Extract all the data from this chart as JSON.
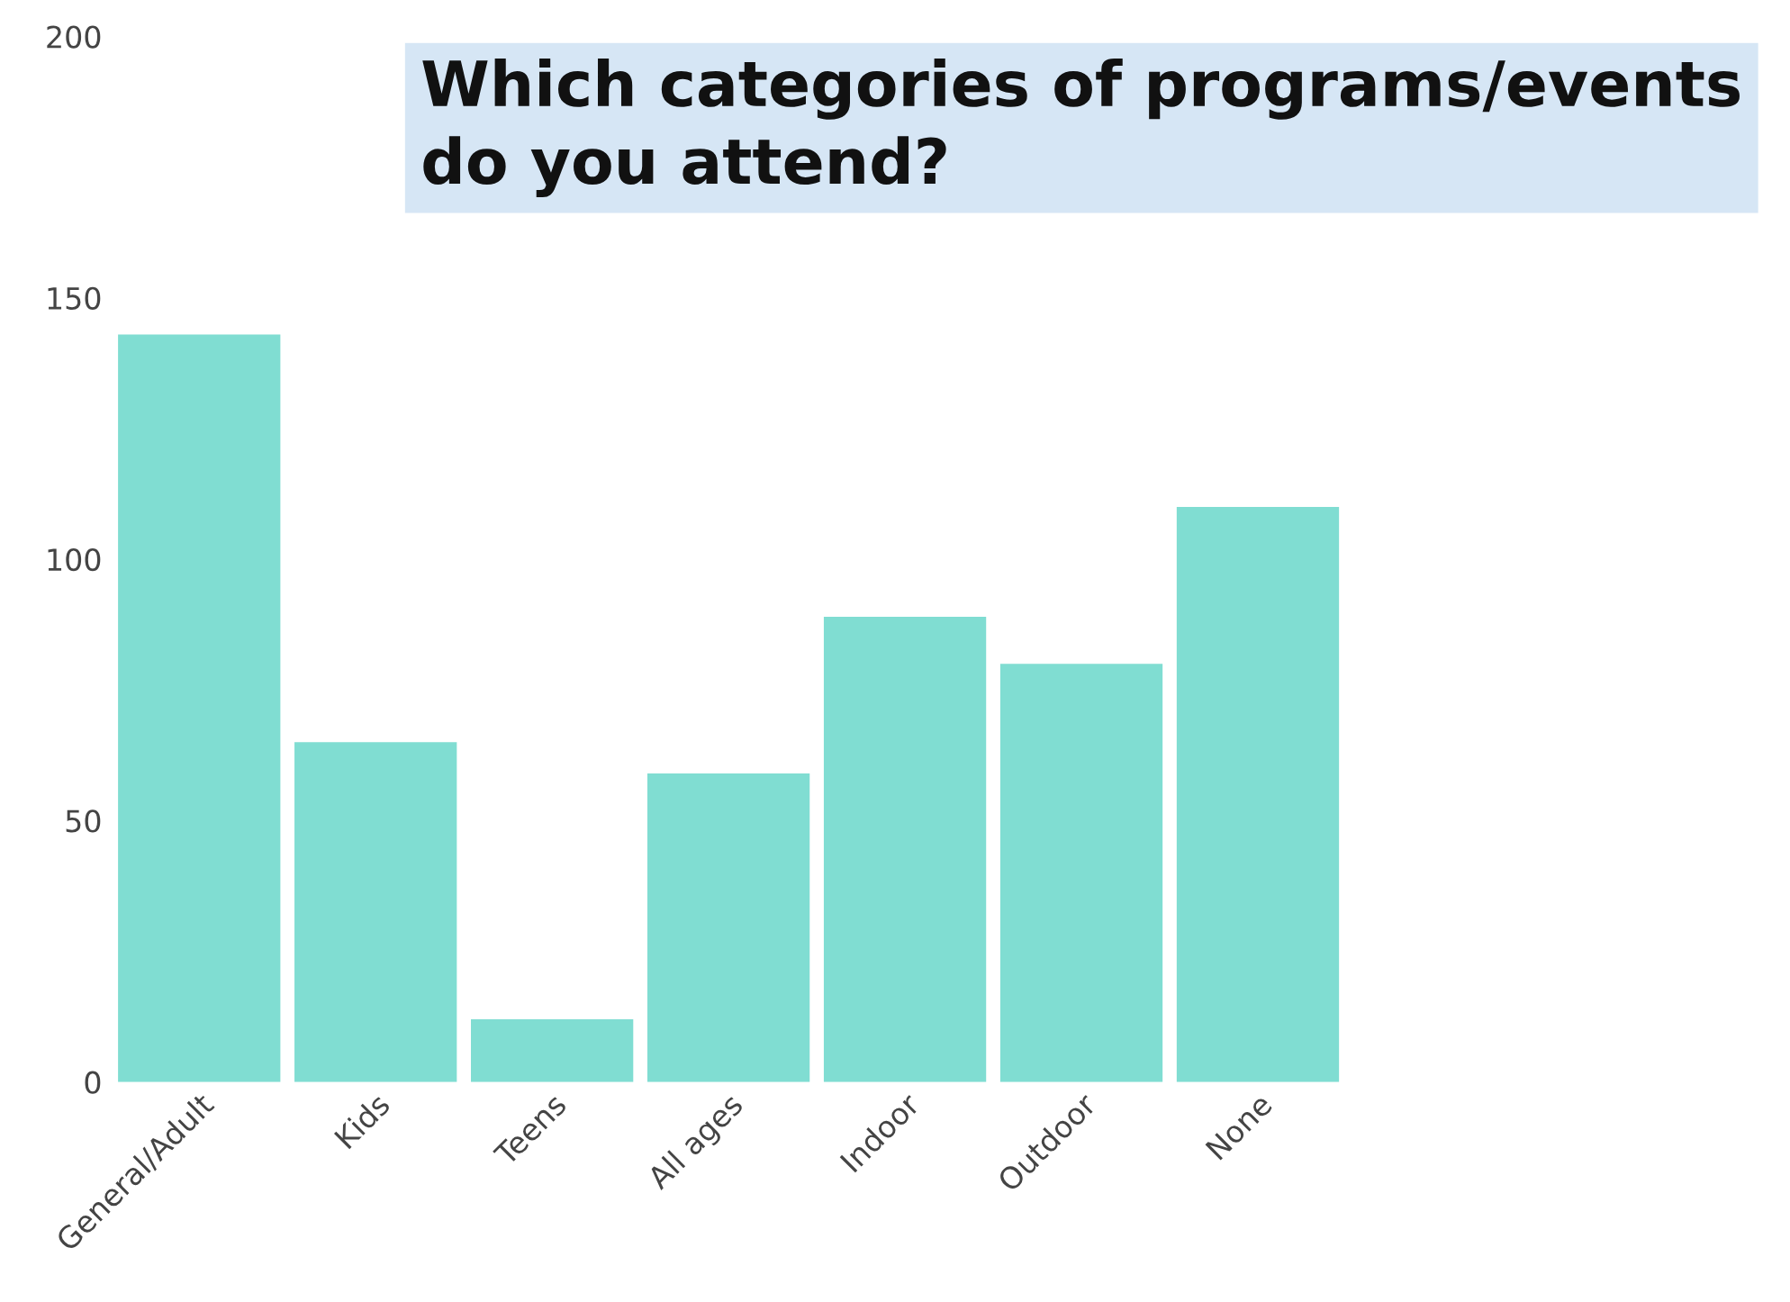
{
  "chart_data": {
    "type": "bar",
    "title": "Which categories of programs/events\ndo you attend?",
    "categories": [
      "General/Adult",
      "Kids",
      "Teens",
      "All ages",
      "Indoor",
      "Outdoor",
      "None"
    ],
    "values": [
      143,
      65,
      12,
      59,
      89,
      80,
      110
    ],
    "color": "#80ddd2",
    "ylim": [
      0,
      200
    ],
    "yticks": [
      0,
      50,
      100,
      150,
      200
    ],
    "grid": false
  }
}
